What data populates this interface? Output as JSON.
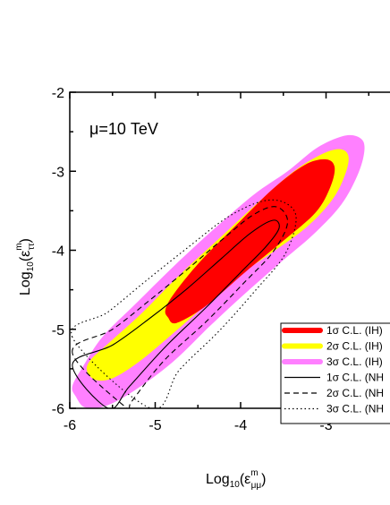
{
  "chart_data": {
    "type": "contour",
    "annotation": "μ=10 TeV",
    "xlabel": {
      "base": "Log",
      "sub": "10",
      "paren_open": "(ε",
      "sup": "m",
      "sub2": "μμ",
      "paren_close": ")"
    },
    "ylabel": {
      "base": "Log",
      "sub": "10",
      "paren_open": "(ε",
      "sup": "m",
      "sub2": "ττ",
      "paren_close": ")"
    },
    "xlim": [
      -6,
      -2.3
    ],
    "ylim": [
      -6,
      -2
    ],
    "xticks": [
      -6,
      -5,
      -4,
      -3
    ],
    "yticks": [
      -6,
      -5,
      -4,
      -3,
      -2
    ],
    "xtick_labels": [
      "-6",
      "-5",
      "-4",
      "-3"
    ],
    "ytick_labels": [
      "-6",
      "-5",
      "-4",
      "-3",
      "-2"
    ],
    "regions": [
      {
        "name": "3σ C.L. (IH)",
        "color": "#ff80ff",
        "style": "filled",
        "points": [
          [
            -5.93,
            -5.85
          ],
          [
            -5.82,
            -5.99
          ],
          [
            -5.58,
            -5.97
          ],
          [
            -5.25,
            -5.78
          ],
          [
            -4.8,
            -5.42
          ],
          [
            -4.35,
            -4.95
          ],
          [
            -3.95,
            -4.55
          ],
          [
            -3.55,
            -4.17
          ],
          [
            -3.15,
            -3.8
          ],
          [
            -2.82,
            -3.42
          ],
          [
            -2.62,
            -3.02
          ],
          [
            -2.55,
            -2.72
          ],
          [
            -2.6,
            -2.58
          ],
          [
            -2.78,
            -2.55
          ],
          [
            -3.1,
            -2.7
          ],
          [
            -3.45,
            -3.0
          ],
          [
            -3.85,
            -3.3
          ],
          [
            -4.3,
            -3.72
          ],
          [
            -4.78,
            -4.2
          ],
          [
            -5.25,
            -4.7
          ],
          [
            -5.62,
            -5.1
          ],
          [
            -5.85,
            -5.48
          ],
          [
            -5.97,
            -5.72
          ]
        ]
      },
      {
        "name": "2σ C.L. (IH)",
        "color": "#ffff00",
        "style": "filled",
        "points": [
          [
            -5.8,
            -5.52
          ],
          [
            -5.7,
            -5.64
          ],
          [
            -5.5,
            -5.62
          ],
          [
            -5.2,
            -5.42
          ],
          [
            -4.82,
            -5.08
          ],
          [
            -4.42,
            -4.7
          ],
          [
            -4.02,
            -4.32
          ],
          [
            -3.62,
            -4.02
          ],
          [
            -3.22,
            -3.7
          ],
          [
            -2.92,
            -3.35
          ],
          [
            -2.77,
            -3.02
          ],
          [
            -2.74,
            -2.8
          ],
          [
            -2.85,
            -2.72
          ],
          [
            -3.08,
            -2.8
          ],
          [
            -3.4,
            -3.02
          ],
          [
            -3.82,
            -3.42
          ],
          [
            -4.25,
            -3.85
          ],
          [
            -4.72,
            -4.32
          ],
          [
            -5.18,
            -4.82
          ],
          [
            -5.55,
            -5.18
          ],
          [
            -5.75,
            -5.38
          ]
        ]
      },
      {
        "name": "1σ C.L. (IH)",
        "color": "#ff0000",
        "style": "filled",
        "points": [
          [
            -4.85,
            -4.85
          ],
          [
            -4.75,
            -4.92
          ],
          [
            -4.4,
            -4.7
          ],
          [
            -3.95,
            -4.28
          ],
          [
            -3.5,
            -3.88
          ],
          [
            -3.12,
            -3.52
          ],
          [
            -2.95,
            -3.2
          ],
          [
            -2.9,
            -2.95
          ],
          [
            -3.0,
            -2.85
          ],
          [
            -3.25,
            -2.92
          ],
          [
            -3.62,
            -3.22
          ],
          [
            -4.05,
            -3.68
          ],
          [
            -4.48,
            -4.15
          ],
          [
            -4.78,
            -4.55
          ],
          [
            -4.88,
            -4.75
          ]
        ]
      },
      {
        "name": "1σ C.L. (NH)",
        "color": "#000000",
        "style": "solid",
        "points": [
          [
            -5.97,
            -5.45
          ],
          [
            -5.5,
            -5.2
          ],
          [
            -5.05,
            -4.85
          ],
          [
            -4.62,
            -4.48
          ],
          [
            -4.22,
            -4.1
          ],
          [
            -3.88,
            -3.78
          ],
          [
            -3.62,
            -3.62
          ],
          [
            -3.55,
            -3.72
          ],
          [
            -3.7,
            -3.95
          ],
          [
            -4.0,
            -4.28
          ],
          [
            -4.4,
            -4.72
          ],
          [
            -4.88,
            -5.22
          ],
          [
            -5.3,
            -5.72
          ],
          [
            -5.55,
            -6.0
          ]
        ]
      },
      {
        "name": "2σ C.L. (NH)",
        "color": "#000000",
        "style": "dashed",
        "points": [
          [
            -5.97,
            -5.3
          ],
          [
            -5.5,
            -5.0
          ],
          [
            -5.05,
            -4.62
          ],
          [
            -4.6,
            -4.22
          ],
          [
            -4.2,
            -3.85
          ],
          [
            -3.85,
            -3.55
          ],
          [
            -3.58,
            -3.45
          ],
          [
            -3.45,
            -3.65
          ],
          [
            -3.62,
            -4.02
          ],
          [
            -3.95,
            -4.4
          ],
          [
            -4.4,
            -4.9
          ],
          [
            -4.9,
            -5.4
          ],
          [
            -5.28,
            -5.92
          ],
          [
            -5.33,
            -6.0
          ]
        ]
      },
      {
        "name": "3σ C.L. (NH)",
        "color": "#000000",
        "style": "dotted",
        "points": [
          [
            -5.97,
            -5.1
          ],
          [
            -5.55,
            -4.78
          ],
          [
            -5.1,
            -4.38
          ],
          [
            -4.6,
            -3.95
          ],
          [
            -4.15,
            -3.58
          ],
          [
            -3.75,
            -3.38
          ],
          [
            -3.48,
            -3.4
          ],
          [
            -3.35,
            -3.6
          ],
          [
            -3.48,
            -4.05
          ],
          [
            -3.82,
            -4.5
          ],
          [
            -4.25,
            -5.02
          ],
          [
            -4.72,
            -5.52
          ],
          [
            -5.05,
            -6.0
          ]
        ]
      }
    ],
    "legend": {
      "position": "right",
      "entries": [
        {
          "label": "1σ C.L. (IH)",
          "color": "#ff0000",
          "style": "thick"
        },
        {
          "label": "2σ C.L. (IH)",
          "color": "#ffff00",
          "style": "thick"
        },
        {
          "label": "3σ C.L. (IH)",
          "color": "#ff80ff",
          "style": "thick"
        },
        {
          "label": "1σ C.L. (NH",
          "color": "#000000",
          "style": "solid"
        },
        {
          "label": "2σ C.L. (NH",
          "color": "#000000",
          "style": "dashed"
        },
        {
          "label": "3σ C.L. (NH",
          "color": "#000000",
          "style": "dotted"
        }
      ]
    }
  }
}
